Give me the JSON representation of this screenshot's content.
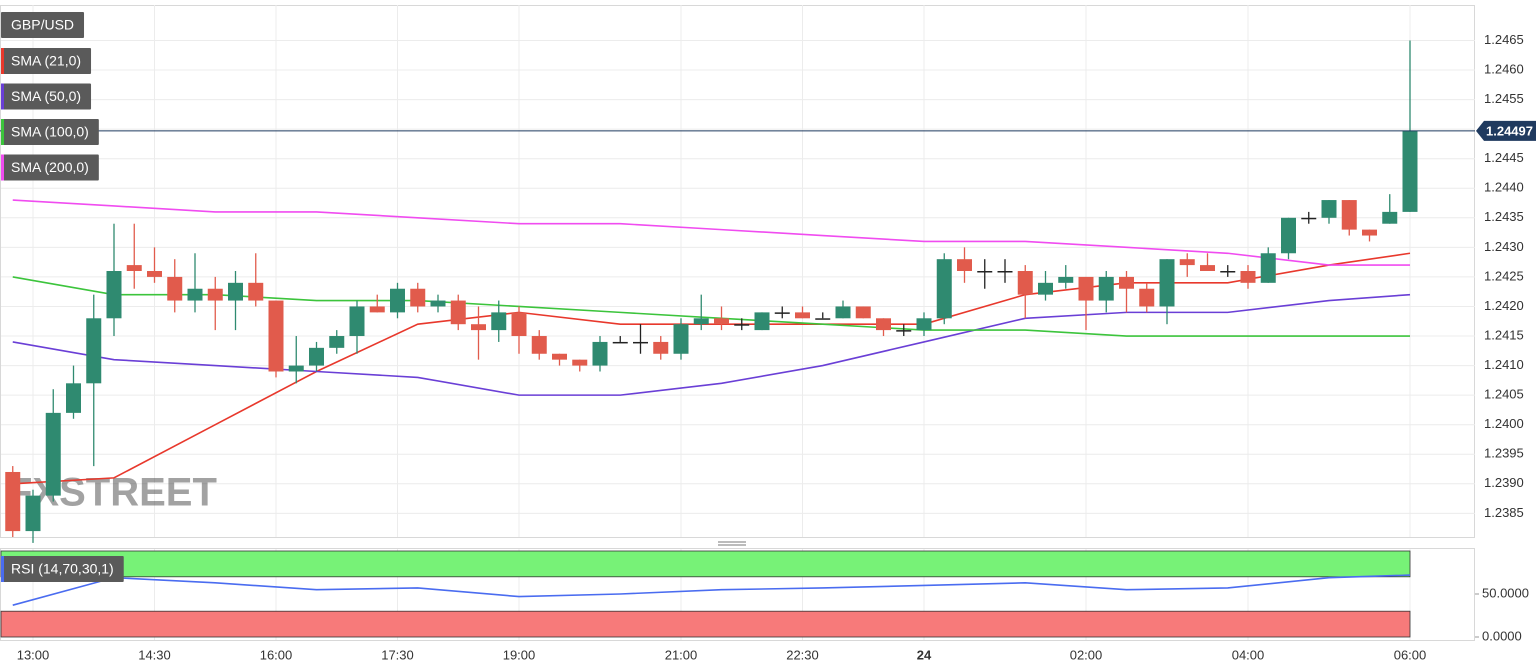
{
  "chart_data": {
    "type": "candlestick",
    "title": "GBP/USD",
    "watermark": "FXSTREET",
    "categories": [
      null,
      "13:00",
      null,
      null,
      null,
      null,
      null,
      "14:30",
      null,
      null,
      null,
      null,
      null,
      "16:00",
      null,
      null,
      null,
      null,
      null,
      "17:30",
      null,
      null,
      null,
      null,
      null,
      "19:00",
      null,
      null,
      null,
      null,
      null,
      null,
      null,
      "21:00",
      null,
      null,
      null,
      null,
      null,
      "22:30",
      null,
      null,
      null,
      null,
      null,
      "24",
      null,
      null,
      null,
      null,
      null,
      null,
      null,
      "02:00",
      null,
      null,
      null,
      null,
      null,
      null,
      null,
      "04:00",
      null,
      null,
      null,
      null,
      null,
      null,
      null,
      "06:00"
    ],
    "open": [
      1.2392,
      1.2382,
      1.2388,
      1.2402,
      1.2407,
      1.2418,
      1.2427,
      1.2426,
      1.2425,
      1.2421,
      1.2423,
      1.2421,
      1.2424,
      1.2421,
      1.2409,
      1.241,
      1.2413,
      1.2415,
      1.242,
      1.2419,
      1.2423,
      1.242,
      1.2421,
      1.2417,
      1.2416,
      1.2419,
      1.2415,
      1.2412,
      1.2411,
      1.241,
      1.2414,
      1.2414,
      1.2414,
      1.2412,
      1.2417,
      1.2418,
      1.2417,
      1.2416,
      1.2419,
      1.2419,
      1.2418,
      1.2418,
      1.242,
      1.2418,
      1.2416,
      1.2416,
      1.2418,
      1.2428,
      1.2426,
      1.2426,
      1.2426,
      1.2422,
      1.2424,
      1.2425,
      1.2421,
      1.2425,
      1.2423,
      1.242,
      1.2428,
      1.2427,
      1.2426,
      1.2426,
      1.2424,
      1.2429,
      1.2435,
      1.2435,
      1.2438,
      1.2433,
      1.2434,
      1.2436
    ],
    "high": [
      1.2393,
      1.2389,
      1.2406,
      1.241,
      1.2422,
      1.2434,
      1.2434,
      1.243,
      1.2428,
      1.2429,
      1.2425,
      1.2426,
      1.2429,
      1.2421,
      1.2415,
      1.2414,
      1.2416,
      1.2421,
      1.2422,
      1.2424,
      1.2424,
      1.2422,
      1.2422,
      1.242,
      1.2421,
      1.242,
      1.2416,
      1.2412,
      1.2411,
      1.2415,
      1.2415,
      1.2417,
      1.2415,
      1.2418,
      1.2422,
      1.242,
      1.2418,
      1.2419,
      1.242,
      1.242,
      1.2419,
      1.2421,
      1.242,
      1.2418,
      1.2417,
      1.2419,
      1.2429,
      1.243,
      1.2428,
      1.2428,
      1.2427,
      1.2426,
      1.2427,
      1.2425,
      1.2426,
      1.2426,
      1.2424,
      1.2428,
      1.2429,
      1.2429,
      1.2427,
      1.2427,
      1.243,
      1.2435,
      1.2436,
      1.2438,
      1.2438,
      1.2433,
      1.2439,
      1.2465
    ],
    "low": [
      1.2381,
      1.238,
      1.2387,
      1.2401,
      1.2393,
      1.2415,
      1.2423,
      1.2424,
      1.2419,
      1.2419,
      1.2416,
      1.2416,
      1.242,
      1.2408,
      1.2407,
      1.2409,
      1.2412,
      1.2412,
      1.2419,
      1.2418,
      1.2419,
      1.2419,
      1.2416,
      1.2411,
      1.2414,
      1.2412,
      1.2411,
      1.241,
      1.2409,
      1.2409,
      1.2414,
      1.2412,
      1.2411,
      1.2411,
      1.2416,
      1.2416,
      1.2416,
      1.2416,
      1.2418,
      1.2418,
      1.2418,
      1.2418,
      1.2418,
      1.2415,
      1.2415,
      1.2415,
      1.2417,
      1.2424,
      1.2423,
      1.2424,
      1.2418,
      1.2421,
      1.2423,
      1.2416,
      1.2419,
      1.2419,
      1.2419,
      1.2417,
      1.2425,
      1.2426,
      1.2425,
      1.2423,
      1.2424,
      1.2428,
      1.2434,
      1.2434,
      1.2432,
      1.2431,
      1.2434,
      1.2436
    ],
    "close": [
      1.2382,
      1.2388,
      1.2402,
      1.2407,
      1.2418,
      1.2426,
      1.2426,
      1.2425,
      1.2421,
      1.2423,
      1.2421,
      1.2424,
      1.2421,
      1.2409,
      1.241,
      1.2413,
      1.2415,
      1.242,
      1.2419,
      1.2423,
      1.242,
      1.2421,
      1.2417,
      1.2416,
      1.2419,
      1.2415,
      1.2412,
      1.2411,
      1.241,
      1.2414,
      1.2414,
      1.2414,
      1.2412,
      1.2417,
      1.2418,
      1.2417,
      1.2417,
      1.2419,
      1.2419,
      1.2418,
      1.2418,
      1.242,
      1.2418,
      1.2416,
      1.2416,
      1.2418,
      1.2428,
      1.2426,
      1.2426,
      1.2426,
      1.2422,
      1.2424,
      1.2425,
      1.2421,
      1.2425,
      1.2423,
      1.242,
      1.2428,
      1.2427,
      1.2426,
      1.2426,
      1.2424,
      1.2429,
      1.2435,
      1.2435,
      1.2438,
      1.2433,
      1.2432,
      1.2436,
      1.24497
    ],
    "up_color": "#2f8a70",
    "down_color": "#e15b4c",
    "flat_color": "#222222",
    "ylim": [
      1.2381,
      1.2471
    ],
    "yticks": [
      1.2385,
      {
        "value": 1.239,
        "label": "1.2390"
      },
      1.2395,
      {
        "value": 1.24,
        "label": "1.2400"
      },
      1.2405,
      {
        "value": 1.241,
        "label": "1.2410"
      },
      1.2415,
      {
        "value": 1.242,
        "label": "1.2420"
      },
      1.2425,
      {
        "value": 1.243,
        "label": "1.2430"
      },
      1.2435,
      {
        "value": 1.244,
        "label": "1.2440"
      },
      1.2445,
      {
        "value": 1.245,
        "label": "1.2450"
      },
      1.2455,
      {
        "value": 1.246,
        "label": "1.2460"
      },
      1.2465
    ],
    "grid": true,
    "price_line_color": "#1f3a5f",
    "indicators": [
      {
        "name": "SMA (21,0)",
        "color": "#e8382c",
        "index": [
          0,
          5,
          10,
          15,
          20,
          25,
          30,
          35,
          40,
          45,
          50,
          55,
          60,
          65,
          69
        ],
        "values": [
          1.239,
          1.2391,
          1.24,
          1.2409,
          1.2417,
          1.2419,
          1.2417,
          1.2417,
          1.2417,
          1.2417,
          1.2422,
          1.2424,
          1.2424,
          1.2427,
          1.2429
        ]
      },
      {
        "name": "SMA (50,0)",
        "color": "#6a3fd6",
        "index": [
          0,
          5,
          10,
          15,
          20,
          25,
          30,
          35,
          40,
          45,
          50,
          55,
          60,
          65,
          69
        ],
        "values": [
          1.2414,
          1.2411,
          1.241,
          1.2409,
          1.2408,
          1.2405,
          1.2405,
          1.2407,
          1.241,
          1.2414,
          1.2418,
          1.2419,
          1.2419,
          1.2421,
          1.2422
        ]
      },
      {
        "name": "SMA (100,0)",
        "color": "#3cc43c",
        "index": [
          0,
          5,
          10,
          15,
          20,
          25,
          30,
          35,
          40,
          45,
          50,
          55,
          60,
          65,
          69
        ],
        "values": [
          1.2425,
          1.2422,
          1.2422,
          1.2421,
          1.2421,
          1.242,
          1.2419,
          1.2418,
          1.2417,
          1.2416,
          1.2416,
          1.2415,
          1.2415,
          1.2415,
          1.2415
        ]
      },
      {
        "name": "SMA (200,0)",
        "color": "#f04cf0",
        "index": [
          0,
          5,
          10,
          15,
          20,
          25,
          30,
          35,
          40,
          45,
          50,
          55,
          60,
          65,
          69
        ],
        "values": [
          1.2438,
          1.2437,
          1.2436,
          1.2436,
          1.2435,
          1.2434,
          1.2434,
          1.2433,
          1.2432,
          1.2431,
          1.2431,
          1.243,
          1.2429,
          1.2427,
          1.2427
        ]
      }
    ],
    "rsi": {
      "name": "RSI (14,70,30,1)",
      "color": "#4a6cf0",
      "index": [
        0,
        5,
        10,
        15,
        20,
        25,
        30,
        35,
        40,
        45,
        50,
        55,
        60,
        65,
        69
      ],
      "values": [
        37,
        69,
        63,
        55,
        57,
        47,
        50,
        55,
        57,
        60,
        63,
        55,
        57,
        69,
        72
      ],
      "ylim": [
        0,
        100
      ],
      "levels": [
        70,
        30
      ],
      "level_colors": [
        "#77f277",
        "#f77a7a"
      ],
      "yticks": [
        {
          "value": 50,
          "label": "50.0000"
        },
        {
          "value": 0,
          "label": "0.0000"
        }
      ]
    }
  }
}
